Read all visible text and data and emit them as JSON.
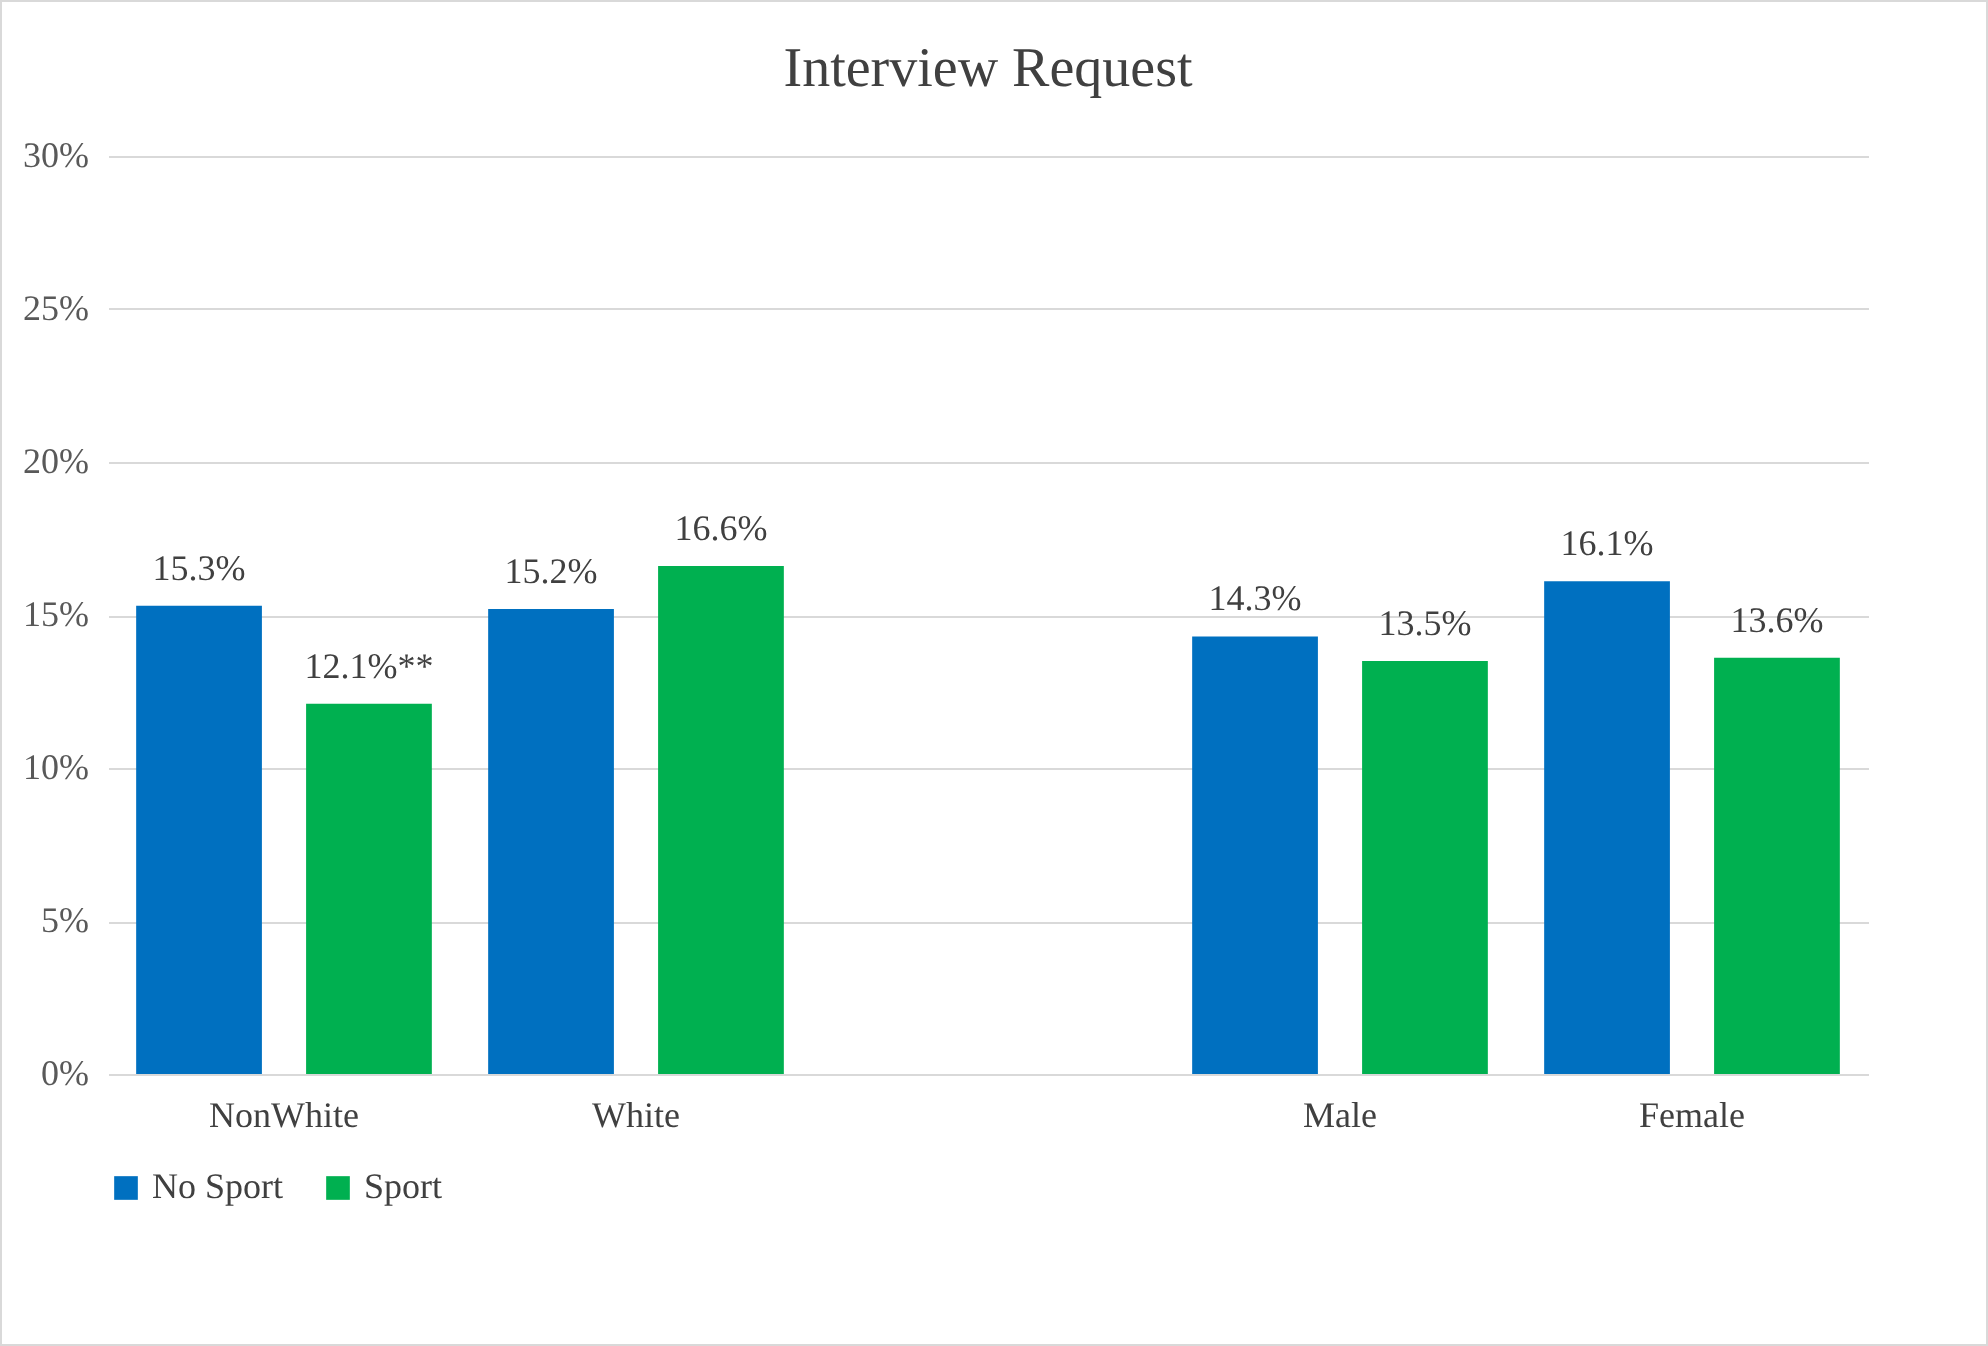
{
  "chart_data": {
    "type": "bar",
    "title": "Interview Request",
    "categories": [
      "NonWhite",
      "White",
      null,
      "Male",
      "Female"
    ],
    "series": [
      {
        "name": "No Sport",
        "color": "#0070c0",
        "values": [
          15.3,
          15.2,
          null,
          14.3,
          16.1
        ],
        "value_labels": [
          "15.3%",
          "15.2%",
          null,
          "14.3%",
          "16.1%"
        ]
      },
      {
        "name": "Sport",
        "color": "#00b050",
        "values": [
          12.1,
          16.6,
          null,
          13.5,
          13.6
        ],
        "value_labels": [
          "12.1%**",
          "16.6%",
          null,
          "13.5%",
          "13.6%"
        ]
      }
    ],
    "ylim": [
      0,
      30
    ],
    "yticks": [
      {
        "value": 0,
        "label": "0%"
      },
      {
        "value": 5,
        "label": "5%"
      },
      {
        "value": 10,
        "label": "10%"
      },
      {
        "value": 15,
        "label": "15%"
      },
      {
        "value": 20,
        "label": "20%"
      },
      {
        "value": 25,
        "label": "25%"
      },
      {
        "value": 30,
        "label": "30%"
      }
    ],
    "grid": "y",
    "legend": "bottom"
  }
}
